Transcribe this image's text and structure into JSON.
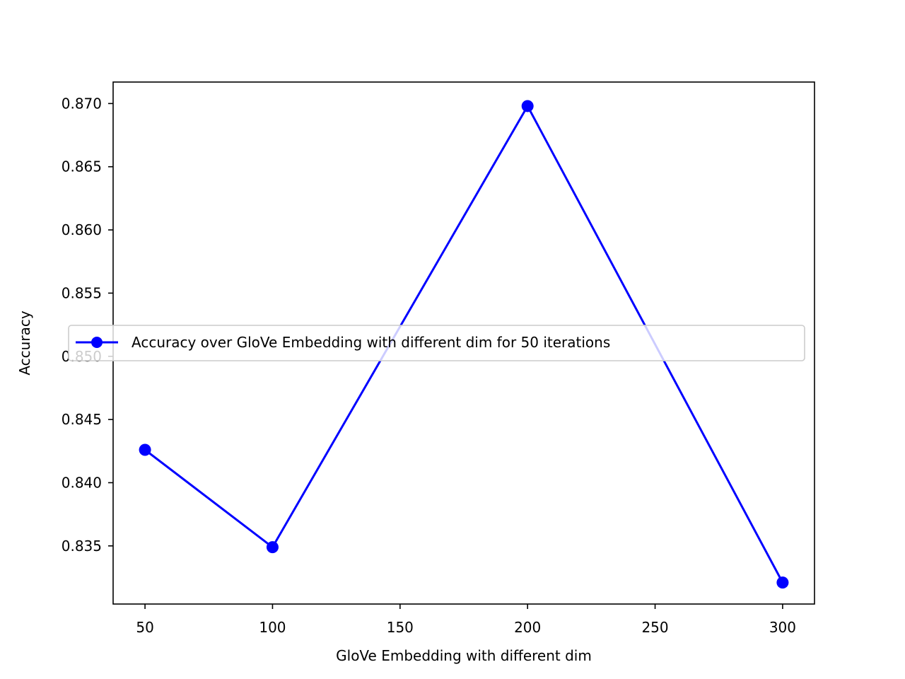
{
  "chart_data": {
    "type": "line",
    "x": [
      50,
      100,
      200,
      300
    ],
    "series": [
      {
        "name": "Accuracy over GloVe Embedding with different dim for 50 iterations",
        "values": [
          0.8426,
          0.8349,
          0.8698,
          0.8321
        ],
        "color": "#0000ff",
        "marker": "circle"
      }
    ],
    "xlabel": "GloVe Embedding with different dim",
    "ylabel": "Accuracy",
    "xlim": [
      37.5,
      312.5
    ],
    "ylim": [
      0.8304,
      0.8717
    ],
    "xticks": [
      50,
      100,
      150,
      200,
      250,
      300
    ],
    "yticks": [
      0.835,
      0.84,
      0.845,
      0.85,
      0.855,
      0.86,
      0.865,
      0.87
    ],
    "ytick_labels": [
      "0.835",
      "0.840",
      "0.845",
      "0.850",
      "0.855",
      "0.860",
      "0.865",
      "0.870"
    ],
    "grid": false,
    "legend_position": "center"
  }
}
